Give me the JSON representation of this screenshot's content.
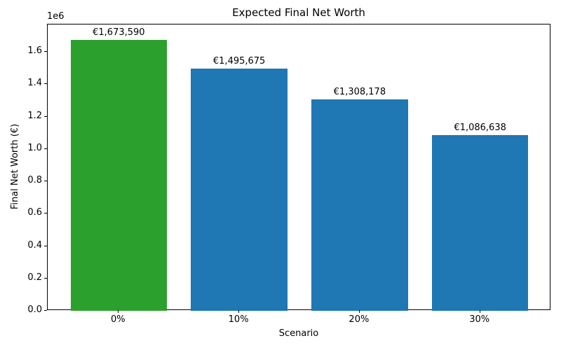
{
  "figure": {
    "background_color": "#ffffff",
    "text_color": "#000000",
    "spine_color": "#000000"
  },
  "chart_data": {
    "type": "bar",
    "title": "Expected Final Net Worth",
    "xlabel": "Scenario",
    "ylabel": "Final Net Worth (€)",
    "categories": [
      "0%",
      "10%",
      "20%",
      "30%"
    ],
    "values": [
      1673590,
      1495675,
      1308178,
      1086638
    ],
    "bar_labels": [
      "€1,673,590",
      "€1,495,675",
      "€1,308,178",
      "€1,086,638"
    ],
    "bar_colors": [
      "#2ca02c",
      "#1f77b4",
      "#1f77b4",
      "#1f77b4"
    ],
    "accent_green": "#2ca02c",
    "accent_blue": "#1f77b4",
    "ylim": [
      0,
      1770000
    ],
    "xlim": [
      -0.59,
      3.59
    ],
    "bar_width": 0.8,
    "yticks": [
      {
        "value": 0,
        "label": "0.0"
      },
      {
        "value": 200000,
        "label": "0.2"
      },
      {
        "value": 400000,
        "label": "0.4"
      },
      {
        "value": 600000,
        "label": "0.6"
      },
      {
        "value": 800000,
        "label": "0.8"
      },
      {
        "value": 1000000,
        "label": "1.0"
      },
      {
        "value": 1200000,
        "label": "1.2"
      },
      {
        "value": 1400000,
        "label": "1.4"
      },
      {
        "value": 1600000,
        "label": "1.6"
      }
    ],
    "y_offset_label": "1e6",
    "grid": false,
    "legend": "none"
  }
}
